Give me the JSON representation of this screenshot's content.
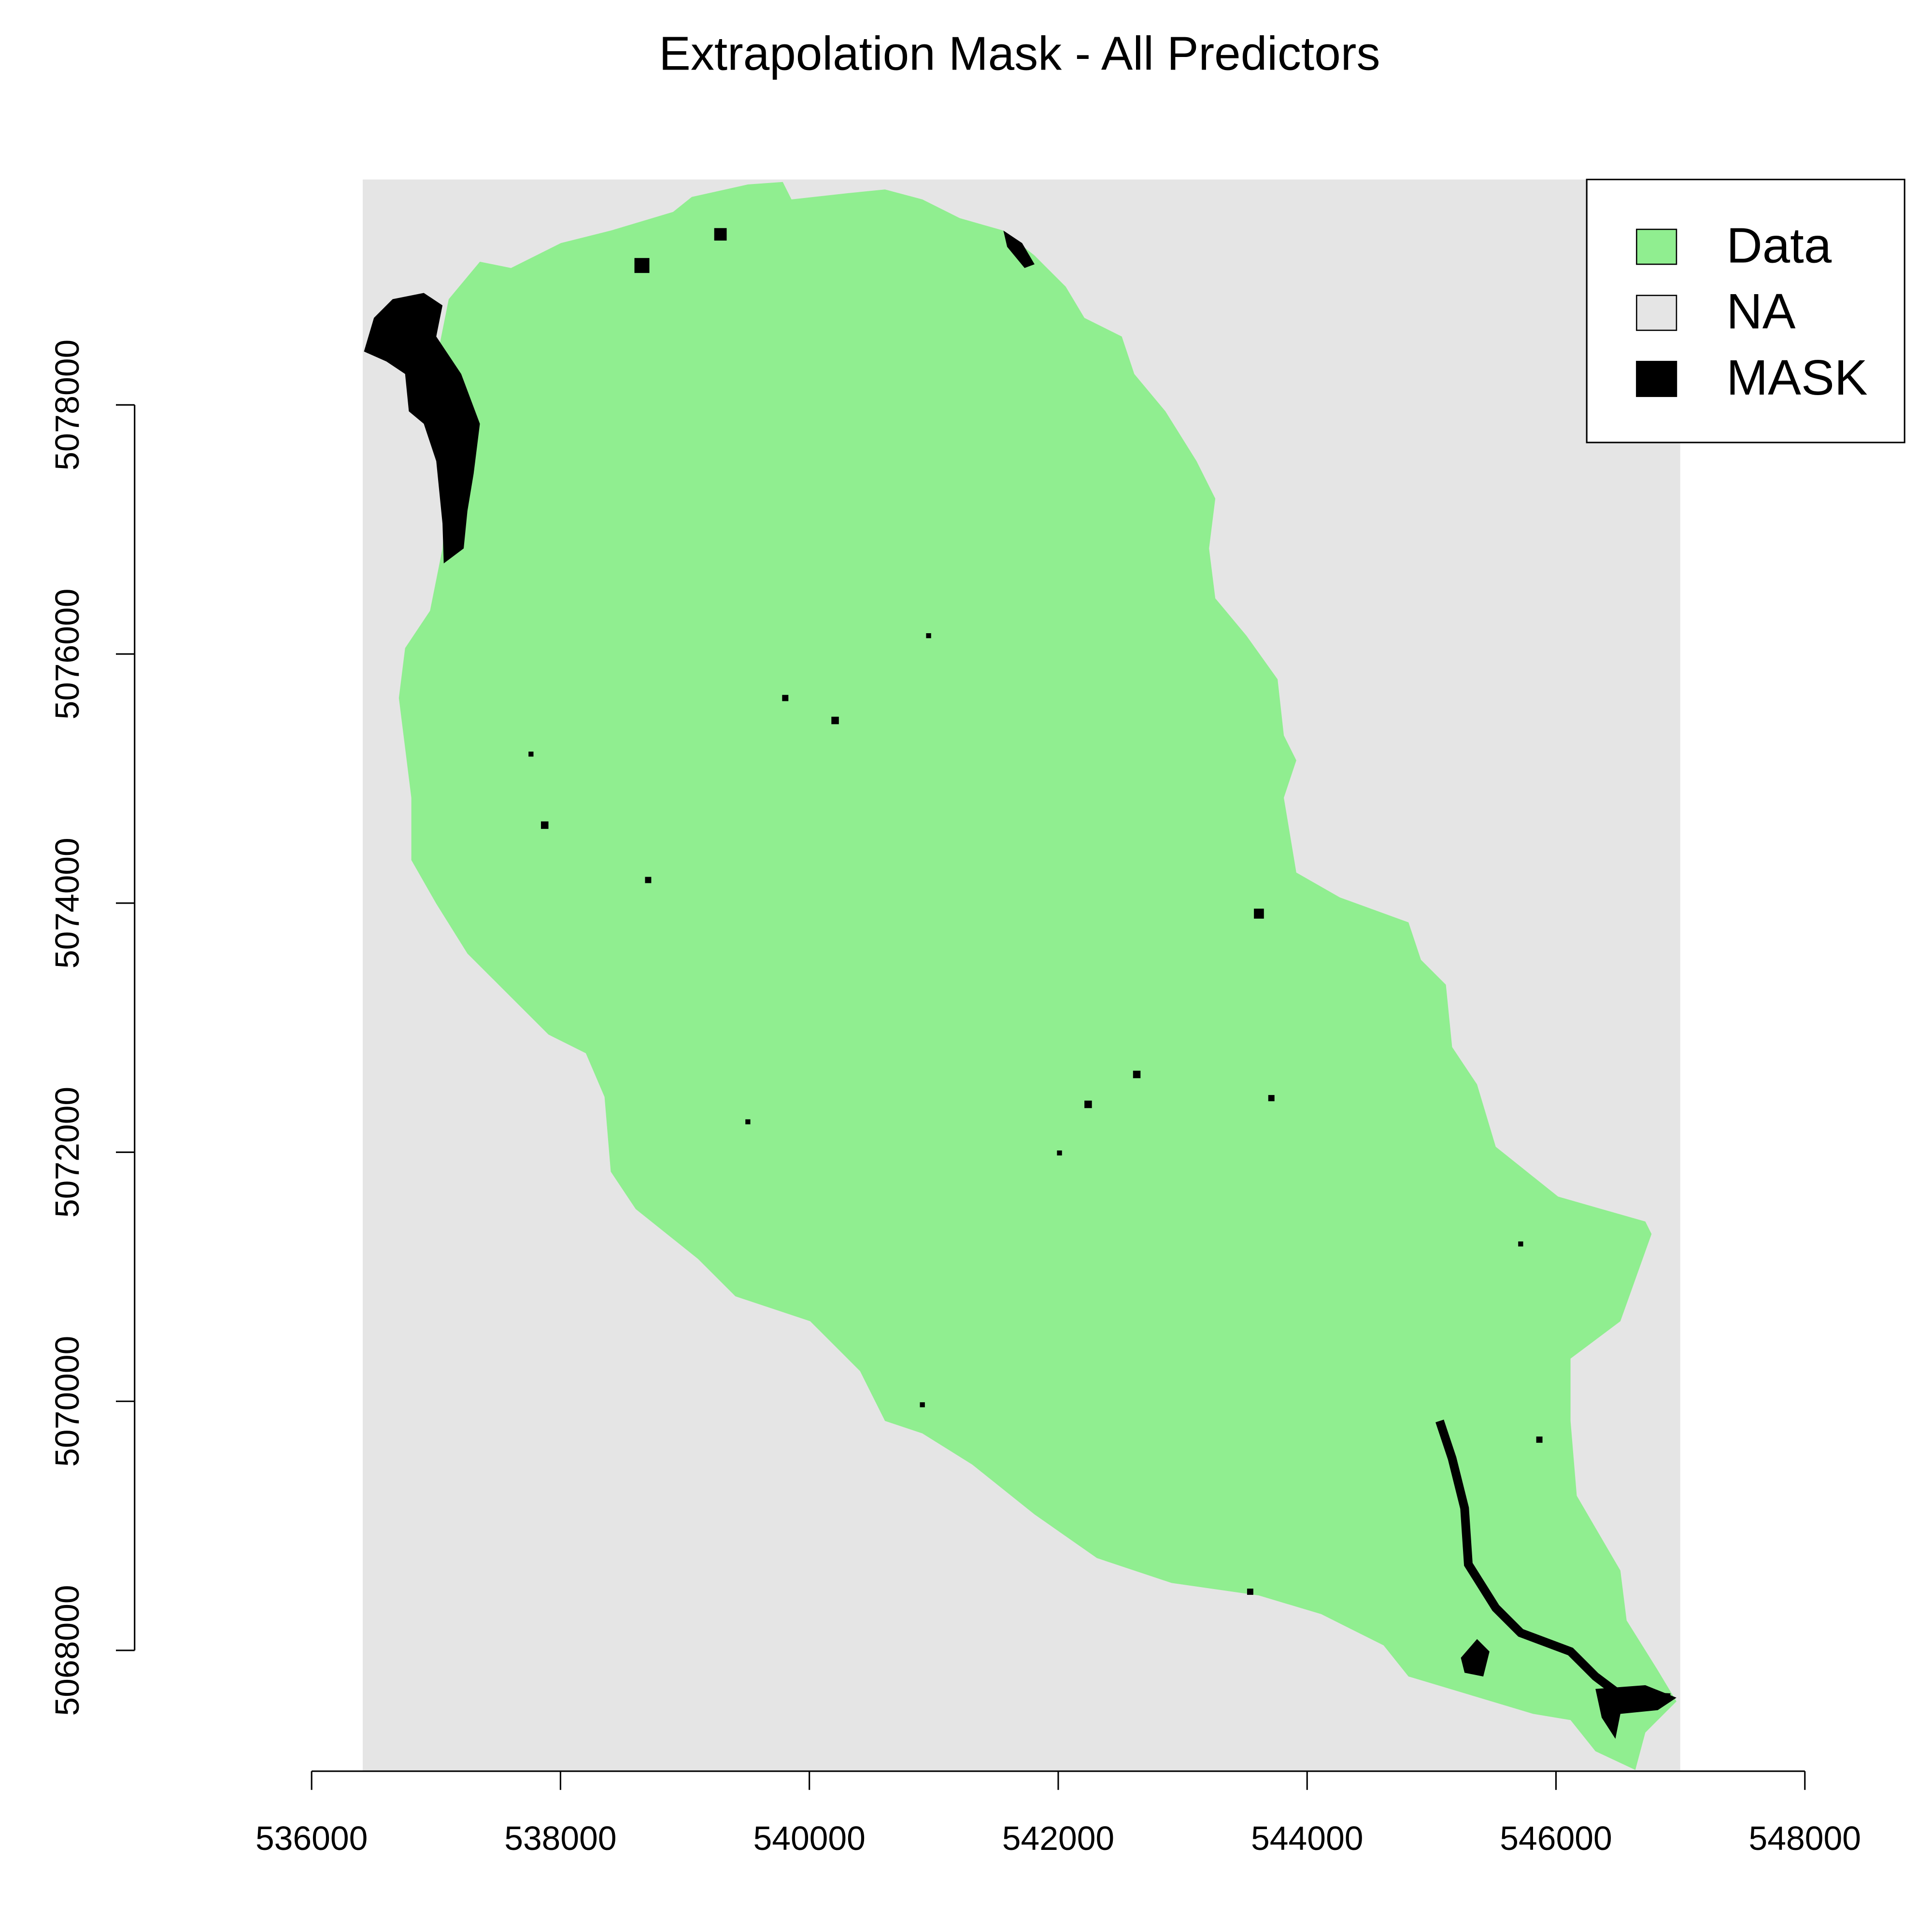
{
  "chart_data": {
    "type": "raster",
    "title": "Extrapolation Mask - All Predictors",
    "xlim": [
      536000,
      548000
    ],
    "ylim": [
      5067030,
      5079810
    ],
    "xticks": [
      536000,
      538000,
      540000,
      542000,
      544000,
      546000,
      548000
    ],
    "yticks": [
      5068000,
      5070000,
      5072000,
      5074000,
      5076000,
      5078000
    ],
    "legend": {
      "position": "topright",
      "entries": [
        {
          "name": "Data",
          "color": "#90EE90"
        },
        {
          "name": "NA",
          "color": "#E5E5E5"
        },
        {
          "name": "MASK",
          "color": "#000000"
        }
      ]
    }
  }
}
